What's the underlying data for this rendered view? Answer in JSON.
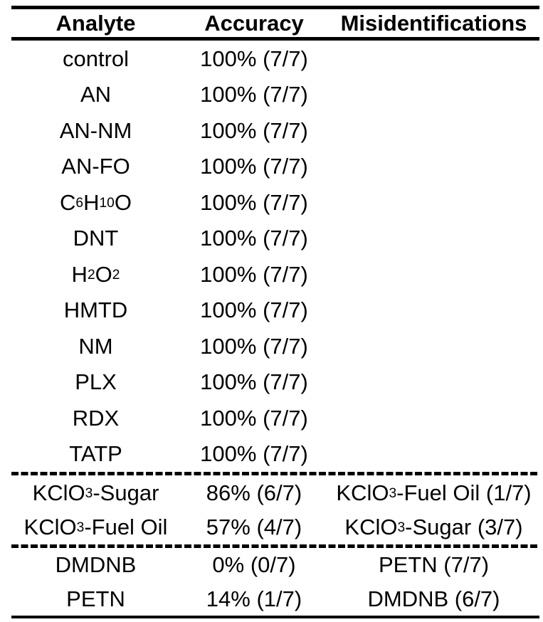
{
  "colors": {
    "text": "#000000",
    "background": "#ffffff",
    "rule": "#000000"
  },
  "table": {
    "columns": [
      {
        "label": "Analyte"
      },
      {
        "label": "Accuracy"
      },
      {
        "label": "Misidentifications"
      }
    ],
    "groups": [
      {
        "rows": [
          {
            "analyte": "control",
            "accuracy": "100% (7/7)",
            "misidentifications": ""
          },
          {
            "analyte": "AN",
            "accuracy": "100% (7/7)",
            "misidentifications": ""
          },
          {
            "analyte": "AN-NM",
            "accuracy": "100% (7/7)",
            "misidentifications": ""
          },
          {
            "analyte": "AN-FO",
            "accuracy": "100% (7/7)",
            "misidentifications": ""
          },
          {
            "analyte": "C~6~H~10~O",
            "accuracy": "100% (7/7)",
            "misidentifications": ""
          },
          {
            "analyte": "DNT",
            "accuracy": "100% (7/7)",
            "misidentifications": ""
          },
          {
            "analyte": "H~2~O~2~",
            "accuracy": "100% (7/7)",
            "misidentifications": ""
          },
          {
            "analyte": "HMTD",
            "accuracy": "100% (7/7)",
            "misidentifications": ""
          },
          {
            "analyte": "NM",
            "accuracy": "100% (7/7)",
            "misidentifications": ""
          },
          {
            "analyte": "PLX",
            "accuracy": "100% (7/7)",
            "misidentifications": ""
          },
          {
            "analyte": "RDX",
            "accuracy": "100% (7/7)",
            "misidentifications": ""
          },
          {
            "analyte": "TATP",
            "accuracy": "100% (7/7)",
            "misidentifications": ""
          }
        ]
      },
      {
        "rows": [
          {
            "analyte": "KClO~3~-Sugar",
            "accuracy": "86% (6/7)",
            "misidentifications": "KClO~3~-Fuel Oil (1/7)"
          },
          {
            "analyte": "KClO~3~-Fuel Oil",
            "accuracy": "57% (4/7)",
            "misidentifications": "KClO~3~-Sugar (3/7)"
          }
        ]
      },
      {
        "rows": [
          {
            "analyte": "DMDNB",
            "accuracy": "0% (0/7)",
            "misidentifications": "PETN (7/7)"
          },
          {
            "analyte": "PETN",
            "accuracy": "14% (1/7)",
            "misidentifications": "DMDNB (6/7)"
          }
        ]
      }
    ]
  }
}
